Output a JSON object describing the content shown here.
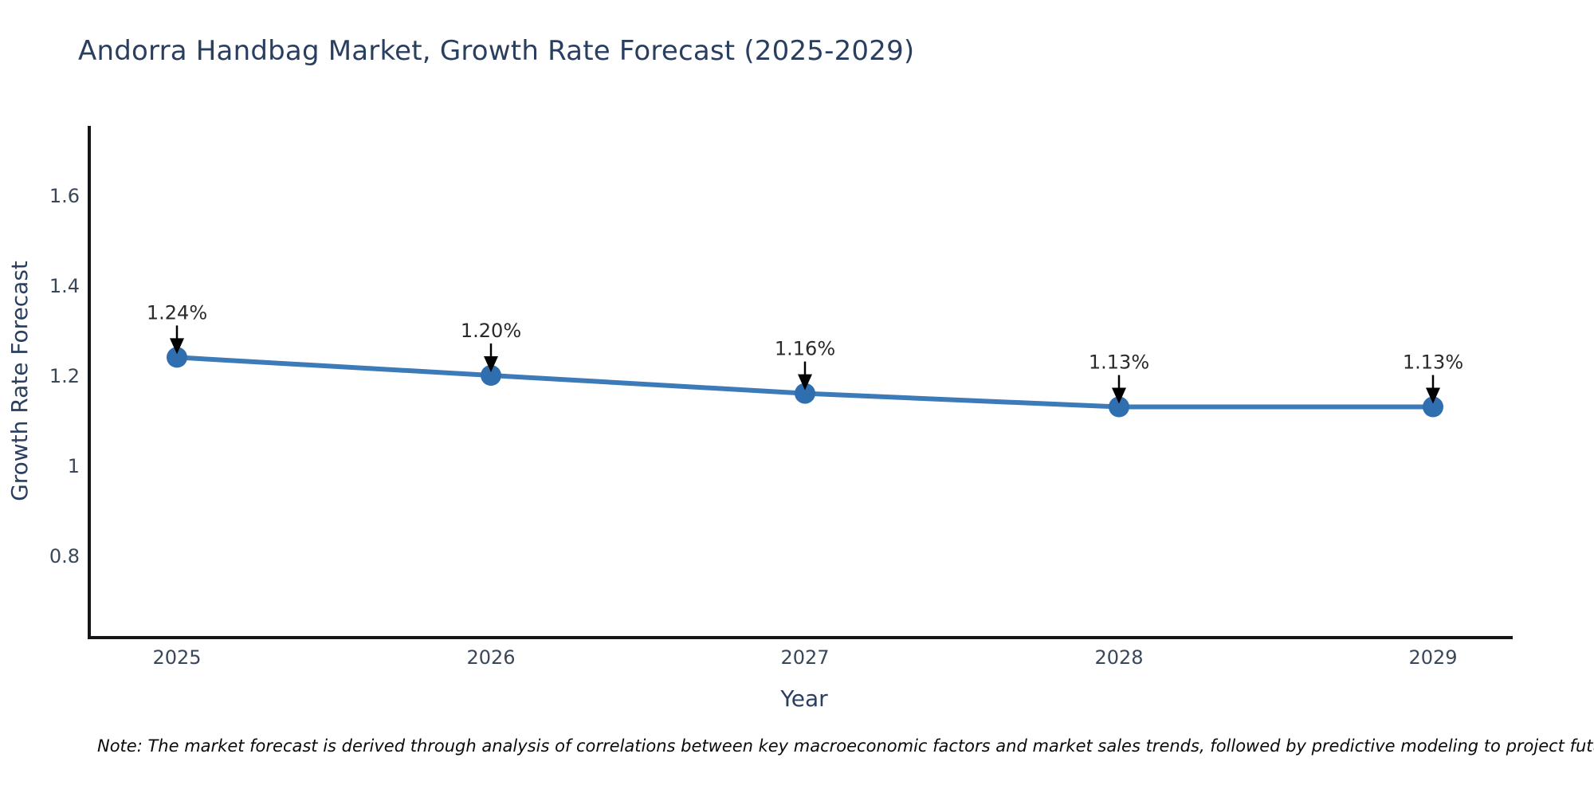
{
  "title": "Andorra Handbag Market, Growth Rate Forecast (2025-2029)",
  "note": "Note: The market forecast is derived through analysis of correlations between key macroeconomic factors and market sales trends, followed by predictive modeling to project future sales",
  "colors": {
    "title_text": "#2a3f5f",
    "axis_title_text": "#2a3f5f",
    "tick_text": "#3a4758",
    "axis_line": "#13171c",
    "series_line": "#3d7ab8",
    "marker_fill": "#2f6fb0",
    "annotation_text": "#2a2a2a",
    "arrow": "#000000",
    "background": "#ffffff"
  },
  "chart_data": {
    "type": "line",
    "title": "Andorra Handbag Market, Growth Rate Forecast (2025-2029)",
    "xlabel": "Year",
    "ylabel": "Growth Rate Forecast",
    "categories": [
      "2025",
      "2026",
      "2027",
      "2028",
      "2029"
    ],
    "values": [
      1.24,
      1.2,
      1.16,
      1.13,
      1.13
    ],
    "point_labels": [
      "1.24%",
      "1.20%",
      "1.16%",
      "1.13%",
      "1.13%"
    ],
    "yticks": [
      "0.8",
      "1",
      "1.2",
      "1.4",
      "1.6"
    ],
    "ytick_values": [
      0.8,
      1.0,
      1.2,
      1.4,
      1.6
    ],
    "ylim": [
      0.62,
      1.75
    ],
    "grid": false,
    "legend": false,
    "annotation_style": "black-down-arrow-to-point"
  }
}
